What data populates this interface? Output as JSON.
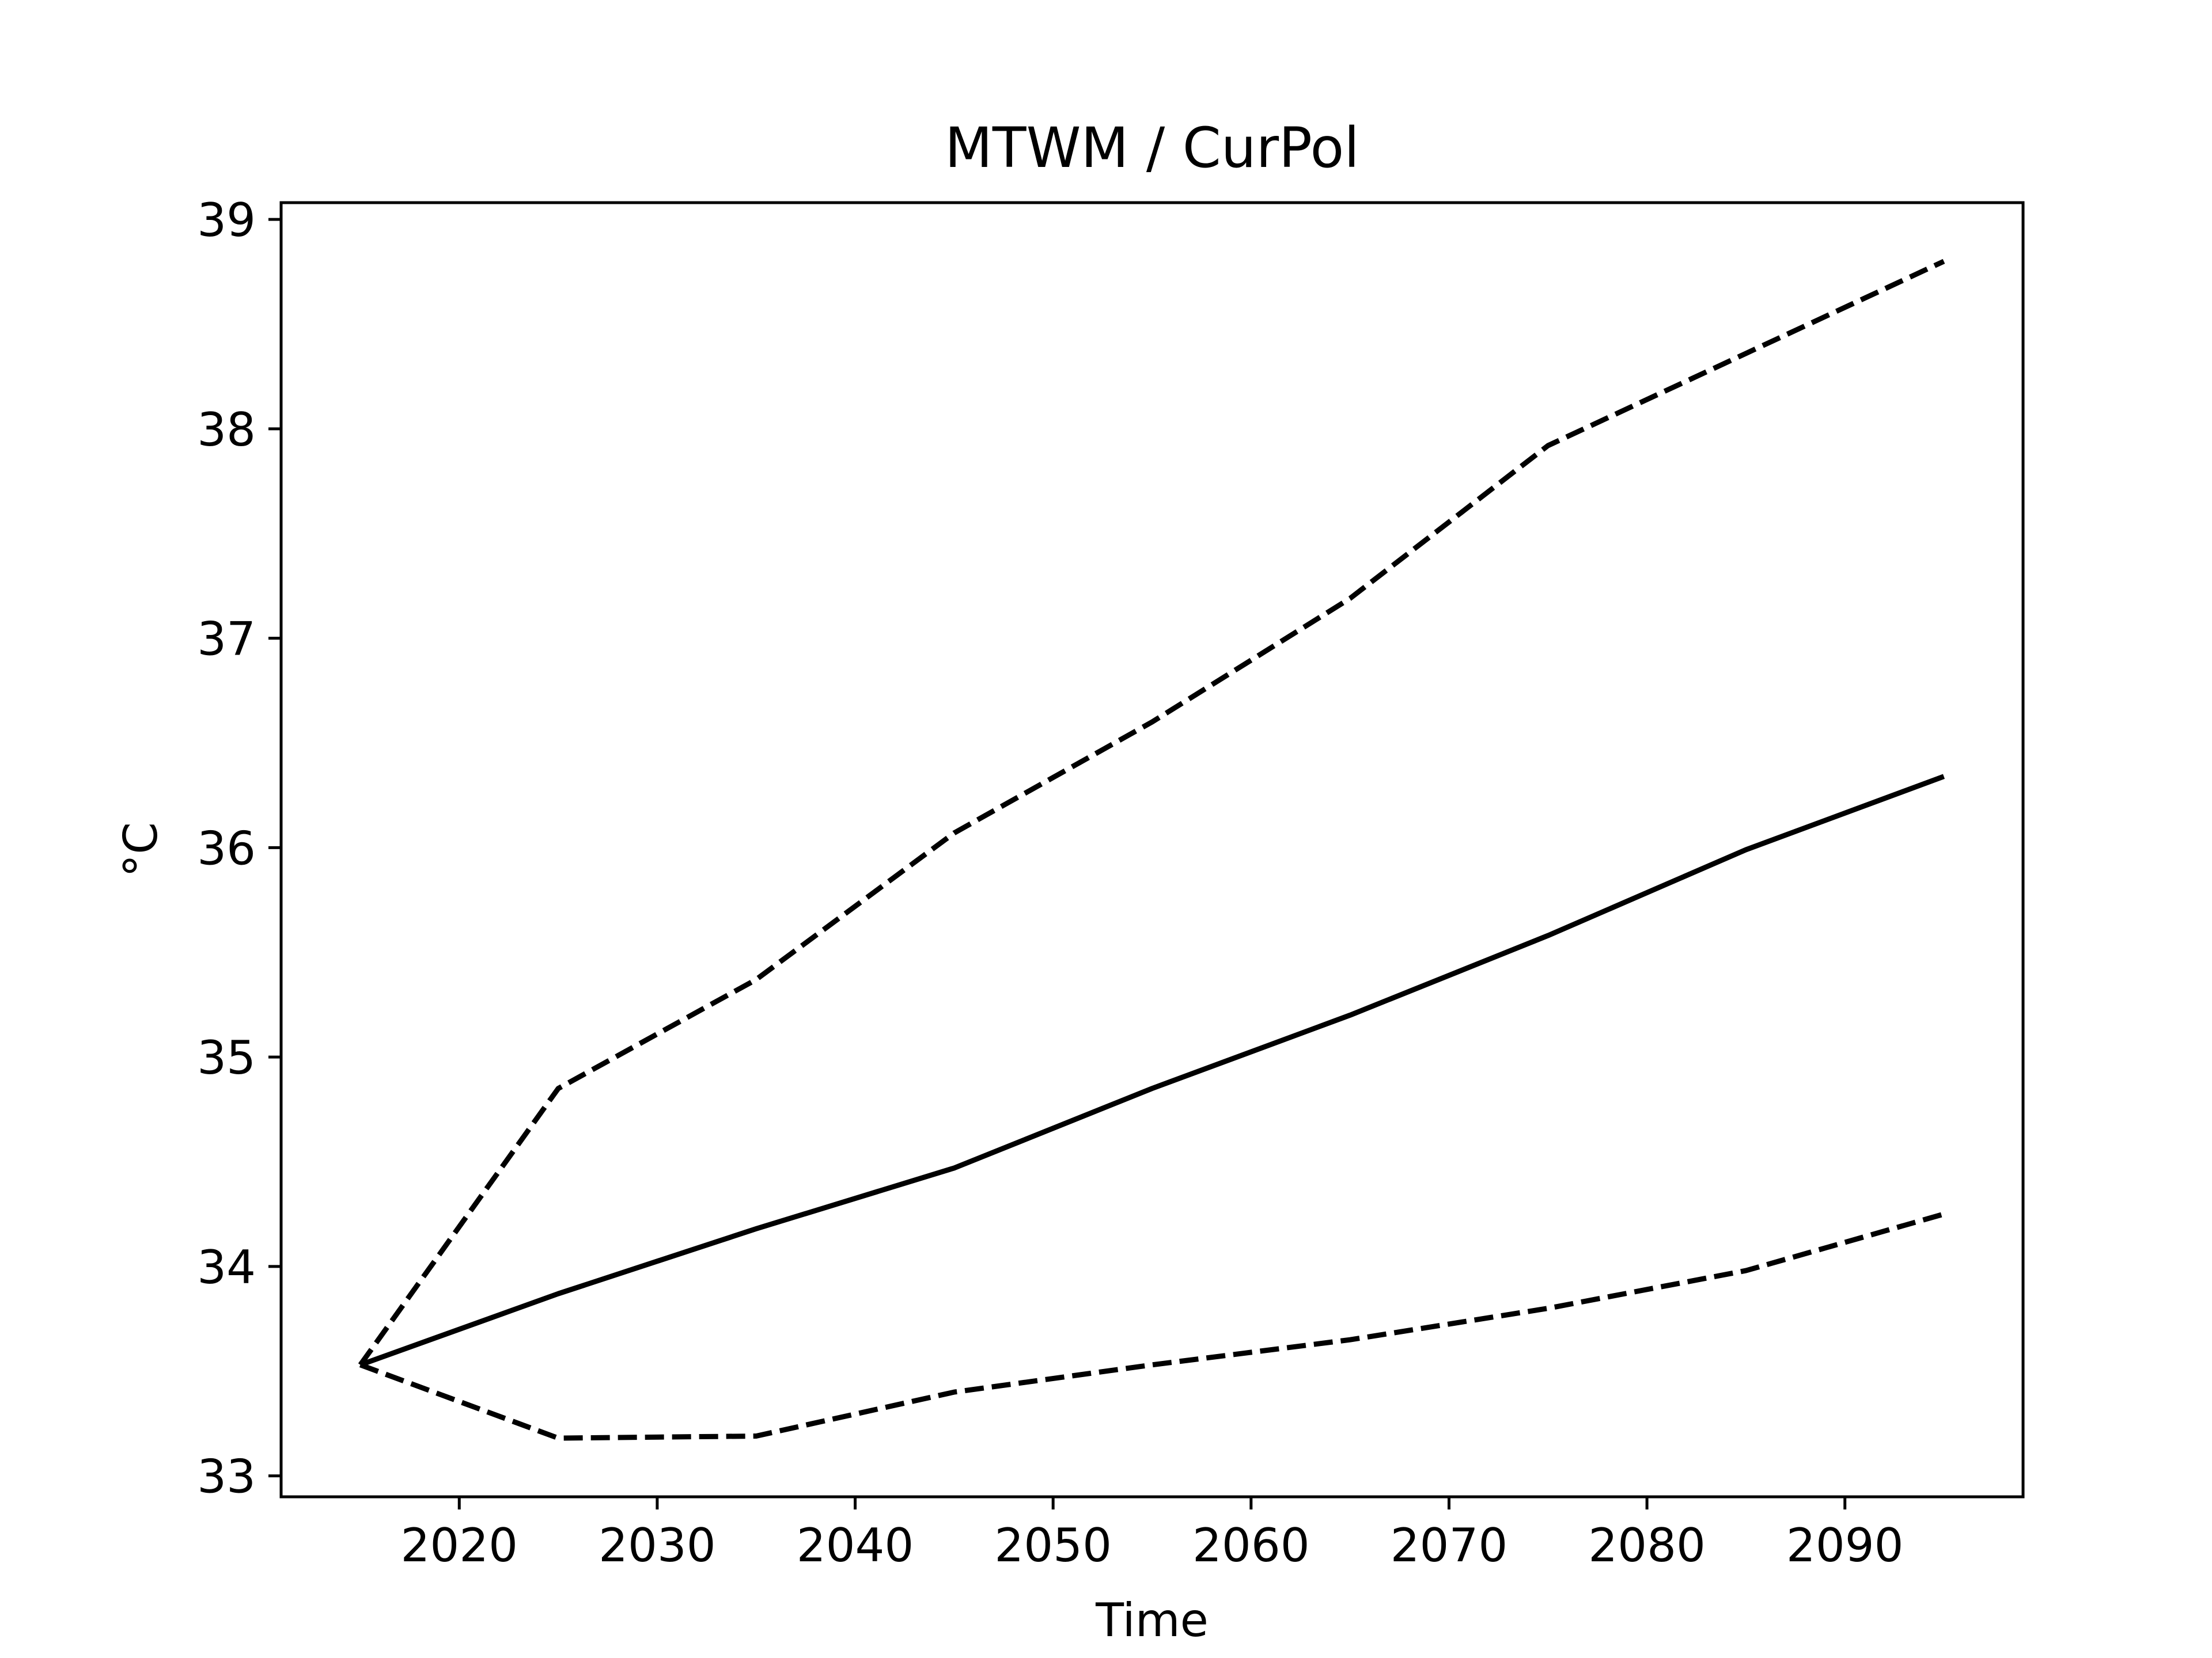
{
  "chart_data": {
    "type": "line",
    "title": "MTWM / CurPol",
    "xlabel": "Time",
    "ylabel": "°C",
    "xlim": [
      2011,
      2099
    ],
    "ylim": [
      32.9,
      39.08
    ],
    "xticks": [
      2020,
      2030,
      2040,
      2050,
      2060,
      2070,
      2080,
      2090
    ],
    "yticks": [
      33,
      34,
      35,
      36,
      37,
      38,
      39
    ],
    "grid": false,
    "legend": "none",
    "x": [
      2015,
      2025,
      2035,
      2045,
      2055,
      2065,
      2075,
      2085,
      2095
    ],
    "series": [
      {
        "style": "solid",
        "color": "#000000",
        "values": [
          33.53,
          33.87,
          34.18,
          34.47,
          34.85,
          35.2,
          35.58,
          35.99,
          36.34
        ]
      },
      {
        "style": "dashed",
        "color": "#000000",
        "values": [
          33.53,
          34.85,
          35.37,
          36.07,
          36.6,
          37.19,
          37.92,
          38.36,
          38.8
        ]
      },
      {
        "style": "dashed",
        "color": "#000000",
        "values": [
          33.53,
          33.18,
          33.19,
          33.4,
          33.53,
          33.65,
          33.8,
          33.98,
          34.25
        ]
      }
    ]
  }
}
